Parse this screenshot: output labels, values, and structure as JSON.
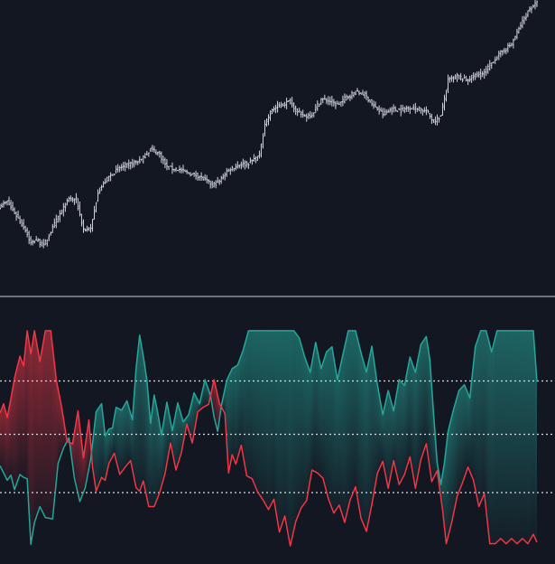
{
  "colors": {
    "background": "#131722",
    "price_bar": "#d1d4dc",
    "separator": "#c8cbd3",
    "bull_line": "#26a69a",
    "bear_line": "#f23645",
    "bull_fill": "#26a69a",
    "bear_fill": "#f23645",
    "level_line": "#d8dbe2"
  },
  "chart_data": [
    {
      "type": "ohlc",
      "panel": "price",
      "ylim": [
        0,
        100
      ],
      "grid": false,
      "close_anchors": [
        [
          0,
          24.6
        ],
        [
          4,
          26.3
        ],
        [
          9,
          21.1
        ],
        [
          14,
          15.8
        ],
        [
          17,
          10.5
        ],
        [
          20,
          11.9
        ],
        [
          24,
          9.6
        ],
        [
          28,
          15.0
        ],
        [
          33,
          21.7
        ],
        [
          38,
          27.2
        ],
        [
          42,
          27.2
        ],
        [
          46,
          15.8
        ],
        [
          50,
          15.8
        ],
        [
          54,
          30.1
        ],
        [
          60,
          35.8
        ],
        [
          66,
          39.1
        ],
        [
          72,
          40.6
        ],
        [
          78,
          42.1
        ],
        [
          83,
          46.3
        ],
        [
          88,
          44.4
        ],
        [
          92,
          39.3
        ],
        [
          98,
          38.6
        ],
        [
          104,
          37.1
        ],
        [
          110,
          36.0
        ],
        [
          117,
          32.6
        ],
        [
          121,
          34.0
        ],
        [
          125,
          37.9
        ],
        [
          131,
          40.2
        ],
        [
          137,
          41.0
        ],
        [
          143,
          43.7
        ],
        [
          146,
          55.9
        ],
        [
          150,
          61.2
        ],
        [
          155,
          63.0
        ],
        [
          160,
          64.4
        ],
        [
          164,
          60.2
        ],
        [
          168,
          58.7
        ],
        [
          172,
          59.5
        ],
        [
          177,
          65.2
        ],
        [
          182,
          64.4
        ],
        [
          186,
          62.9
        ],
        [
          191,
          65.9
        ],
        [
          196,
          67.8
        ],
        [
          201,
          67.1
        ],
        [
          206,
          62.5
        ],
        [
          211,
          59.5
        ],
        [
          216,
          61.4
        ],
        [
          221,
          61.0
        ],
        [
          226,
          62.1
        ],
        [
          231,
          61.4
        ],
        [
          235,
          60.6
        ],
        [
          239,
          56.8
        ],
        [
          243,
          58.7
        ],
        [
          247,
          72.3
        ],
        [
          252,
          73.9
        ],
        [
          257,
          72.3
        ],
        [
          262,
          74.2
        ],
        [
          267,
          75.0
        ],
        [
          272,
          79.9
        ],
        [
          277,
          83.3
        ],
        [
          282,
          86.0
        ],
        [
          287,
          93.2
        ],
        [
          292,
          99.6
        ],
        [
          296,
          101.5
        ]
      ],
      "note_gap_after_index": 245
    },
    {
      "type": "line",
      "panel": "oscillator",
      "ylim": [
        0,
        100
      ],
      "grid": false,
      "levels": [
        73.9,
        50.0,
        23.9
      ],
      "series": [
        {
          "role": "bull",
          "anchors": [
            [
              0,
              35.9
            ],
            [
              2,
              32.7
            ],
            [
              4,
              29.4
            ],
            [
              6,
              31.7
            ],
            [
              8,
              25.2
            ],
            [
              11,
              32.0
            ],
            [
              13,
              30.7
            ],
            [
              15,
              30.1
            ],
            [
              17,
              0.7
            ],
            [
              19,
              10.5
            ],
            [
              22,
              17.6
            ],
            [
              25,
              12.7
            ],
            [
              29,
              12.1
            ],
            [
              32,
              36.9
            ],
            [
              35,
              43.8
            ],
            [
              38,
              48.4
            ],
            [
              41,
              30.4
            ],
            [
              44,
              19.9
            ],
            [
              47,
              26.1
            ],
            [
              50,
              38.9
            ],
            [
              53,
              60.1
            ],
            [
              56,
              63.7
            ],
            [
              58,
              49.3
            ],
            [
              60,
              52.3
            ],
            [
              62,
              52.9
            ],
            [
              64,
              62.1
            ],
            [
              67,
              60.8
            ],
            [
              70,
              65.0
            ],
            [
              73,
              56.5
            ],
            [
              75,
              79.4
            ],
            [
              77,
              94.4
            ],
            [
              79,
              85.0
            ],
            [
              81,
              74.2
            ],
            [
              83,
              54.9
            ],
            [
              85,
              67.6
            ],
            [
              87,
              59.5
            ],
            [
              89,
              49.7
            ],
            [
              92,
              64.4
            ],
            [
              95,
              51.6
            ],
            [
              98,
              64.1
            ],
            [
              101,
              55.6
            ],
            [
              104,
              58.8
            ],
            [
              107,
              68.6
            ],
            [
              110,
              63.7
            ],
            [
              113,
              74.5
            ],
            [
              116,
              67.6
            ],
            [
              118,
              57.8
            ],
            [
              120,
              51.3
            ],
            [
              122,
              62.7
            ],
            [
              125,
              74.2
            ],
            [
              128,
              79.4
            ],
            [
              131,
              81.0
            ],
            [
              134,
              87.6
            ],
            [
              137,
              96.4
            ],
            [
              142,
              96.4
            ],
            [
              146,
              96.4
            ],
            [
              150,
              96.4
            ],
            [
              154,
              96.4
            ],
            [
              158,
              96.4
            ],
            [
              162,
              96.4
            ],
            [
              165,
              93.1
            ],
            [
              168,
              84.6
            ],
            [
              171,
              77.8
            ],
            [
              174,
              91.2
            ],
            [
              177,
              79.4
            ],
            [
              180,
              86.9
            ],
            [
              183,
              89.2
            ],
            [
              186,
              74.5
            ],
            [
              189,
              85.6
            ],
            [
              192,
              96.4
            ],
            [
              196,
              96.4
            ],
            [
              199,
              86.6
            ],
            [
              202,
              77.8
            ],
            [
              205,
              89.5
            ],
            [
              208,
              72.5
            ],
            [
              211,
              58.8
            ],
            [
              214,
              69.6
            ],
            [
              217,
              60.5
            ],
            [
              220,
              74.5
            ],
            [
              223,
              71.9
            ],
            [
              226,
              84.6
            ],
            [
              229,
              77.8
            ],
            [
              232,
              90.2
            ],
            [
              235,
              93.8
            ],
            [
              237,
              83.3
            ],
            [
              239,
              59.5
            ],
            [
              241,
              37.3
            ],
            [
              243,
              27.5
            ],
            [
              245,
              37.3
            ],
            [
              247,
              51.3
            ],
            [
              250,
              61.1
            ],
            [
              253,
              69.6
            ],
            [
              256,
              72.2
            ],
            [
              259,
              66.3
            ],
            [
              262,
              89.2
            ],
            [
              265,
              96.4
            ],
            [
              268,
              96.4
            ],
            [
              271,
              86.9
            ],
            [
              274,
              96.4
            ],
            [
              278,
              96.4
            ],
            [
              282,
              96.4
            ],
            [
              286,
              96.4
            ],
            [
              290,
              96.4
            ],
            [
              294,
              96.4
            ],
            [
              296,
              73.5
            ]
          ]
        },
        {
          "role": "bear",
          "anchors": [
            [
              0,
              59.5
            ],
            [
              2,
              63.7
            ],
            [
              4,
              57.5
            ],
            [
              6,
              66.0
            ],
            [
              8,
              75.2
            ],
            [
              11,
              85.0
            ],
            [
              13,
              80.7
            ],
            [
              15,
              96.4
            ],
            [
              17,
              86.0
            ],
            [
              19,
              96.4
            ],
            [
              22,
              82.7
            ],
            [
              25,
              96.4
            ],
            [
              28,
              96.4
            ],
            [
              31,
              74.5
            ],
            [
              34,
              62.1
            ],
            [
              37,
              46.7
            ],
            [
              40,
              45.8
            ],
            [
              43,
              60.5
            ],
            [
              46,
              39.5
            ],
            [
              49,
              56.5
            ],
            [
              51,
              35.3
            ],
            [
              53,
              24.5
            ],
            [
              56,
              30.7
            ],
            [
              58,
              29.4
            ],
            [
              60,
              36.9
            ],
            [
              63,
              41.5
            ],
            [
              66,
              32.0
            ],
            [
              69,
              35.3
            ],
            [
              72,
              38.2
            ],
            [
              75,
              26.1
            ],
            [
              77,
              24.5
            ],
            [
              79,
              29.1
            ],
            [
              82,
              17.6
            ],
            [
              85,
              17.6
            ],
            [
              88,
              23.9
            ],
            [
              91,
              32.4
            ],
            [
              94,
              46.1
            ],
            [
              97,
              34.0
            ],
            [
              100,
              41.8
            ],
            [
              103,
              54.6
            ],
            [
              106,
              46.1
            ],
            [
              109,
              60.1
            ],
            [
              112,
              62.1
            ],
            [
              115,
              63.4
            ],
            [
              118,
              74.5
            ],
            [
              121,
              63.7
            ],
            [
              124,
              59.2
            ],
            [
              126,
              32.7
            ],
            [
              128,
              40.9
            ],
            [
              130,
              36.6
            ],
            [
              133,
              45.1
            ],
            [
              136,
              31.4
            ],
            [
              139,
              30.1
            ],
            [
              142,
              24.2
            ],
            [
              145,
              20.6
            ],
            [
              148,
              16.3
            ],
            [
              151,
              20.9
            ],
            [
              154,
              6.2
            ],
            [
              157,
              13.4
            ],
            [
              160,
              0.0
            ],
            [
              163,
              10.8
            ],
            [
              166,
              17.0
            ],
            [
              169,
              20.3
            ],
            [
              172,
              34.0
            ],
            [
              175,
              32.7
            ],
            [
              178,
              30.4
            ],
            [
              181,
              21.2
            ],
            [
              184,
              14.7
            ],
            [
              187,
              18.3
            ],
            [
              190,
              10.5
            ],
            [
              193,
              20.6
            ],
            [
              196,
              26.5
            ],
            [
              199,
              12.4
            ],
            [
              202,
              6.5
            ],
            [
              205,
              18.6
            ],
            [
              208,
              32.4
            ],
            [
              211,
              37.9
            ],
            [
              214,
              25.8
            ],
            [
              217,
              38.2
            ],
            [
              220,
              27.5
            ],
            [
              223,
              32.0
            ],
            [
              226,
              39.9
            ],
            [
              229,
              25.8
            ],
            [
              232,
              38.6
            ],
            [
              235,
              45.8
            ],
            [
              238,
              28.8
            ],
            [
              241,
              33.7
            ],
            [
              244,
              16.0
            ],
            [
              246,
              1.0
            ],
            [
              249,
              10.5
            ],
            [
              252,
              22.2
            ],
            [
              255,
              28.4
            ],
            [
              258,
              35.3
            ],
            [
              261,
              29.4
            ],
            [
              264,
              17.6
            ],
            [
              267,
              23.5
            ],
            [
              270,
              1.0
            ],
            [
              273,
              1.0
            ],
            [
              276,
              3.3
            ],
            [
              279,
              1.0
            ],
            [
              282,
              3.3
            ],
            [
              285,
              1.0
            ],
            [
              288,
              3.3
            ],
            [
              291,
              1.0
            ],
            [
              294,
              5.2
            ],
            [
              296,
              1.6
            ]
          ]
        }
      ]
    }
  ]
}
